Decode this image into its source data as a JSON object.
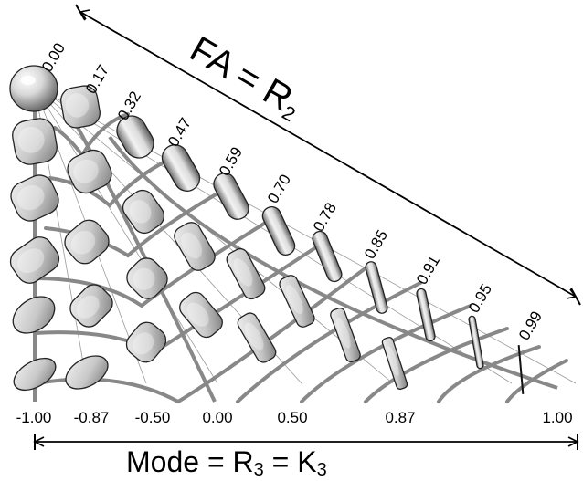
{
  "fa_axis": {
    "title": "FA = R",
    "title_subscript": "2",
    "values": [
      "0.00",
      "0.17",
      "0.32",
      "0.47",
      "0.59",
      "0.70",
      "0.78",
      "0.85",
      "0.91",
      "0.95",
      "0.99"
    ]
  },
  "mode_axis": {
    "title_prefix": "Mode = R",
    "title_sub1": "3",
    "title_mid": " = K",
    "title_sub2": "3",
    "values": [
      "-1.00",
      "-0.87",
      "-0.50",
      "0.00",
      "0.50",
      "0.87",
      "1.00"
    ]
  },
  "colors": {
    "ink": "#000000",
    "guide": "#888888",
    "thin_guide": "#9a9a9a",
    "glyph_fill_light": "#f4f4f4",
    "glyph_fill_dark": "#6e6e6e"
  }
}
